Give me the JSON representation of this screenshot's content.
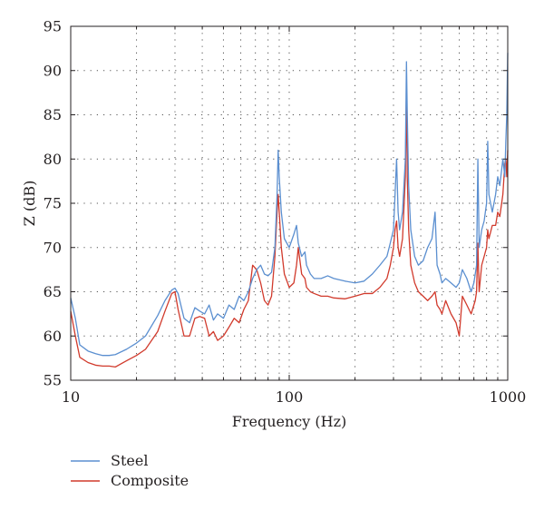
{
  "chart_data": {
    "type": "line",
    "xscale": "log",
    "xlim": [
      10,
      1000
    ],
    "ylim": [
      55,
      95
    ],
    "xlabel": "Frequency (Hz)",
    "ylabel": "Z (dB)",
    "xticks": [
      "10",
      "100",
      "1000"
    ],
    "yticks": [
      "55",
      "60",
      "65",
      "70",
      "75",
      "80",
      "85",
      "90",
      "95"
    ],
    "grid": true,
    "legend_position": "bottom-left, below plot",
    "series": [
      {
        "name": "Steel",
        "color": "#5b8fd0",
        "x": [
          10,
          10.5,
          11,
          12,
          13,
          14,
          15,
          16,
          18,
          20,
          22,
          25,
          27,
          29,
          30,
          31,
          33,
          35,
          37,
          39,
          41,
          43,
          45,
          47,
          50,
          53,
          56,
          59,
          62,
          65,
          68,
          71,
          74,
          77,
          80,
          83,
          86,
          88,
          89,
          90,
          92,
          95,
          100,
          105,
          108,
          110,
          114,
          118,
          120,
          125,
          130,
          140,
          150,
          160,
          180,
          200,
          220,
          240,
          260,
          280,
          290,
          300,
          305,
          310,
          315,
          320,
          330,
          340,
          344,
          347,
          352,
          360,
          375,
          390,
          410,
          430,
          450,
          465,
          475,
          490,
          500,
          520,
          550,
          580,
          600,
          620,
          650,
          680,
          700,
          710,
          720,
          730,
          740,
          760,
          780,
          800,
          810,
          820,
          850,
          880,
          900,
          920,
          950,
          970,
          980,
          990,
          1000
        ],
        "y": [
          64.3,
          62.0,
          59.0,
          58.3,
          58.0,
          57.8,
          57.8,
          57.9,
          58.5,
          59.2,
          60.0,
          62.3,
          64.0,
          65.2,
          65.4,
          64.8,
          62.0,
          61.5,
          63.2,
          62.8,
          62.5,
          63.5,
          61.8,
          62.5,
          62.0,
          63.5,
          63.0,
          64.5,
          64.0,
          65.0,
          66.5,
          67.5,
          68.0,
          67.0,
          66.8,
          67.2,
          70.0,
          76.0,
          81.0,
          78.0,
          74.0,
          71.0,
          70.0,
          71.5,
          72.5,
          70.5,
          69.0,
          69.5,
          68.0,
          67.0,
          66.5,
          66.5,
          66.8,
          66.5,
          66.2,
          66.0,
          66.2,
          67.0,
          68.0,
          69.0,
          70.5,
          72.0,
          76.0,
          80.0,
          74.0,
          72.0,
          74.0,
          80.0,
          91.0,
          85.0,
          77.0,
          72.0,
          69.0,
          68.0,
          68.5,
          70.0,
          71.0,
          74.0,
          68.0,
          67.0,
          66.0,
          66.5,
          66.0,
          65.5,
          66.0,
          67.5,
          66.5,
          65.0,
          66.0,
          67.0,
          68.0,
          80.0,
          70.0,
          72.0,
          73.0,
          75.0,
          82.0,
          76.0,
          74.0,
          76.0,
          78.0,
          77.0,
          80.0,
          78.0,
          82.0,
          85.0,
          92.0
        ]
      },
      {
        "name": "Composite",
        "color": "#d13a2c",
        "x": [
          10,
          10.5,
          11,
          12,
          13,
          14,
          15,
          16,
          18,
          20,
          22,
          25,
          27,
          29,
          30,
          31,
          33,
          35,
          37,
          39,
          41,
          43,
          45,
          47,
          50,
          53,
          56,
          59,
          62,
          65,
          68,
          71,
          74,
          77,
          80,
          83,
          86,
          88,
          89,
          90,
          92,
          95,
          100,
          105,
          108,
          110,
          114,
          118,
          120,
          125,
          130,
          140,
          150,
          160,
          180,
          200,
          220,
          240,
          260,
          280,
          290,
          300,
          305,
          310,
          315,
          320,
          330,
          340,
          344,
          347,
          352,
          360,
          375,
          390,
          410,
          430,
          450,
          465,
          475,
          490,
          500,
          520,
          550,
          580,
          600,
          620,
          650,
          680,
          700,
          710,
          720,
          730,
          740,
          760,
          780,
          800,
          810,
          820,
          850,
          880,
          900,
          920,
          950,
          970,
          980,
          990,
          1000
        ],
        "y": [
          62.8,
          60.0,
          57.6,
          57.0,
          56.7,
          56.6,
          56.6,
          56.5,
          57.2,
          57.8,
          58.5,
          60.5,
          62.8,
          64.8,
          65.0,
          63.0,
          60.0,
          60.0,
          62.0,
          62.2,
          62.0,
          60.0,
          60.5,
          59.5,
          60.0,
          61.0,
          62.0,
          61.5,
          63.0,
          64.0,
          68.0,
          67.5,
          66.0,
          64.0,
          63.5,
          64.5,
          69.0,
          74.0,
          76.0,
          74.0,
          70.0,
          67.0,
          65.5,
          66.0,
          68.0,
          70.0,
          67.0,
          66.5,
          65.5,
          65.0,
          64.8,
          64.5,
          64.5,
          64.3,
          64.2,
          64.5,
          64.8,
          64.8,
          65.5,
          66.5,
          68.0,
          70.0,
          72.0,
          73.0,
          70.0,
          69.0,
          71.0,
          78.0,
          88.0,
          78.0,
          72.0,
          68.0,
          66.0,
          65.0,
          64.5,
          64.0,
          64.5,
          65.0,
          63.5,
          63.0,
          62.5,
          64.0,
          62.5,
          61.5,
          60.0,
          64.5,
          63.5,
          62.5,
          63.5,
          64.0,
          65.0,
          70.5,
          65.0,
          68.0,
          69.0,
          70.0,
          72.0,
          71.0,
          72.5,
          72.5,
          74.0,
          73.5,
          76.0,
          79.5,
          80.0,
          78.0,
          81.0
        ]
      }
    ]
  }
}
